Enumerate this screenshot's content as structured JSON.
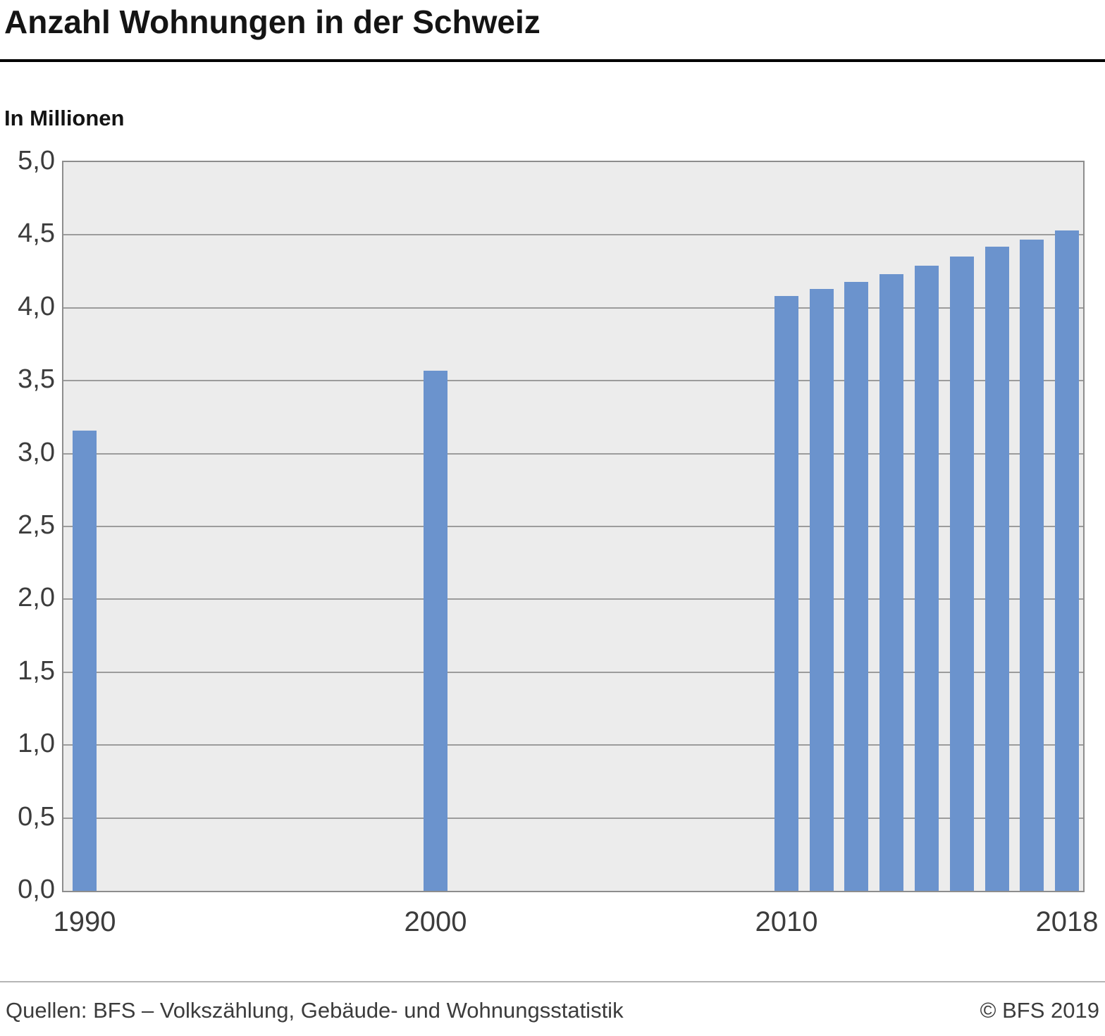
{
  "chart_data": {
    "type": "bar",
    "title": "Anzahl Wohnungen in der Schweiz",
    "ylabel": "In Millionen",
    "xlabel": "",
    "x": [
      1990,
      2000,
      2010,
      2011,
      2012,
      2013,
      2014,
      2015,
      2016,
      2017,
      2018
    ],
    "values": [
      3.16,
      3.57,
      4.08,
      4.13,
      4.18,
      4.23,
      4.29,
      4.35,
      4.42,
      4.47,
      4.53
    ],
    "ylim": [
      0,
      5
    ],
    "y_ticks": [
      {
        "value": 0.0,
        "label": "0,0"
      },
      {
        "value": 0.5,
        "label": "0,5"
      },
      {
        "value": 1.0,
        "label": "1,0"
      },
      {
        "value": 1.5,
        "label": "1,5"
      },
      {
        "value": 2.0,
        "label": "2,0"
      },
      {
        "value": 2.5,
        "label": "2,5"
      },
      {
        "value": 3.0,
        "label": "3,0"
      },
      {
        "value": 3.5,
        "label": "3,5"
      },
      {
        "value": 4.0,
        "label": "4,0"
      },
      {
        "value": 4.5,
        "label": "4,5"
      },
      {
        "value": 5.0,
        "label": "5,0"
      }
    ],
    "x_ticks": [
      {
        "year": 1990,
        "label": "1990"
      },
      {
        "year": 2000,
        "label": "2000"
      },
      {
        "year": 2010,
        "label": "2010"
      },
      {
        "year": 2018,
        "label": "2018"
      }
    ],
    "bar_color": "#6b93cd",
    "plot_background": "#ececec",
    "grid": true,
    "legend": "none"
  },
  "footer": {
    "source": "Quellen: BFS – Volkszählung, Gebäude- und Wohnungsstatistik",
    "copyright": "© BFS 2019"
  }
}
